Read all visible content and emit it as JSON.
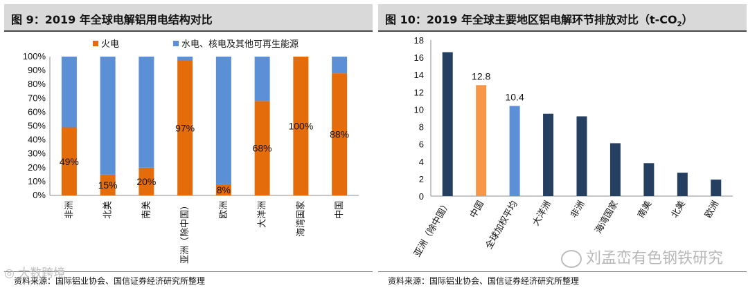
{
  "colors": {
    "orange": "#e46c0a",
    "blue": "#5b8fd6",
    "navy": "#243f60",
    "light_orange": "#f79646",
    "title_bg": "#d9d9d9"
  },
  "left": {
    "title": "图 9：2019 年全球电解铝用电结构对比",
    "source": "资料来源：国际铝业协会、国信证券经济研究所整理",
    "chart_data": {
      "type": "bar",
      "stacked": true,
      "categories": [
        "非洲",
        "北美",
        "南美",
        "亚洲（除中国）",
        "欧洲",
        "大洋洲",
        "海湾国家",
        "中国"
      ],
      "series": [
        {
          "name": "火电",
          "values": [
            49,
            15,
            20,
            97,
            8,
            68,
            100,
            88
          ]
        },
        {
          "name": "水电、核电及其他可再生能源",
          "values": [
            51,
            85,
            80,
            3,
            92,
            32,
            0,
            12
          ]
        }
      ],
      "data_labels": [
        "49%",
        "15%",
        "20%",
        "97%",
        "8%",
        "68%",
        "100%",
        "88%"
      ],
      "y_ticks": [
        "0%",
        "10%",
        "20%",
        "30%",
        "40%",
        "50%",
        "60%",
        "70%",
        "80%",
        "90%",
        "100%"
      ],
      "ylim": [
        0,
        100
      ],
      "legend": "top"
    }
  },
  "right": {
    "title": "图 10：2019 年全球主要地区铝电解环节排放对比（t-CO",
    "title_sub": "2",
    "title_end": "）",
    "source": "资料来源：国际铝业协会、国信证券经济研究所整理",
    "chart_data": {
      "type": "bar",
      "categories": [
        "亚洲（除中国）",
        "中国",
        "全球加权平均",
        "大洋洲",
        "非洲",
        "海湾国家",
        "南美",
        "北美",
        "欧洲"
      ],
      "values": [
        16.6,
        12.8,
        10.4,
        9.5,
        9.2,
        6.1,
        3.8,
        2.7,
        1.9
      ],
      "bar_colors": [
        "navy",
        "light_orange",
        "blue",
        "navy",
        "navy",
        "navy",
        "navy",
        "navy",
        "navy"
      ],
      "data_labels": [
        "",
        "12.8",
        "10.4",
        "",
        "",
        "",
        "",
        "",
        ""
      ],
      "y_ticks": [
        "0",
        "2",
        "4",
        "6",
        "8",
        "10",
        "12",
        "14",
        "16",
        "18"
      ],
      "ylim": [
        0,
        18
      ]
    }
  },
  "watermark": "刘孟峦有色钢铁研究",
  "corner_logo": "◎ 大数跨境"
}
